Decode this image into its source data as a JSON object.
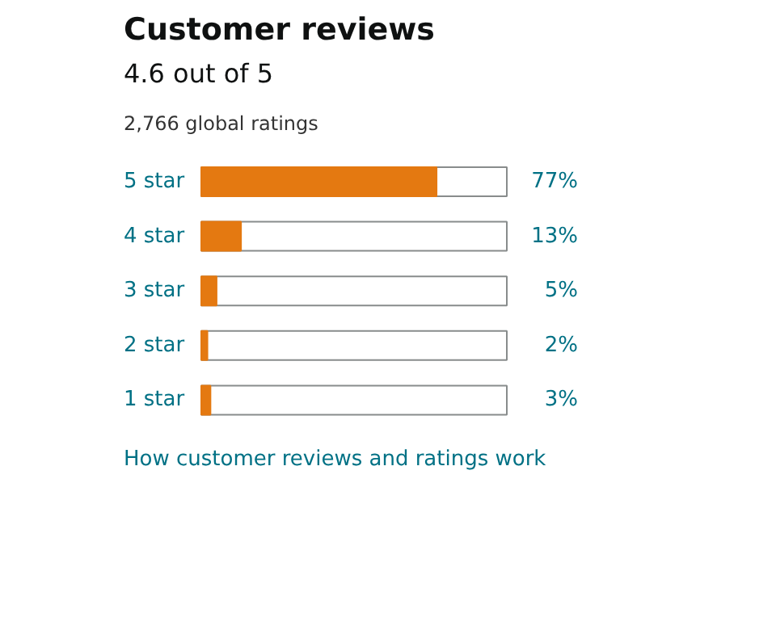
{
  "chart_data": {
    "type": "bar",
    "orientation": "horizontal",
    "title": "Customer reviews",
    "categories": [
      "5 star",
      "4 star",
      "3 star",
      "2 star",
      "1 star"
    ],
    "values": [
      77,
      13,
      5,
      2,
      3
    ],
    "value_labels": [
      "77%",
      "13%",
      "5%",
      "2%",
      "3%"
    ],
    "color": "#e47911",
    "xlim": [
      0,
      100
    ],
    "annotations": [
      "4.6 out of 5",
      "2,766 global ratings",
      "How customer reviews and ratings work"
    ]
  }
}
